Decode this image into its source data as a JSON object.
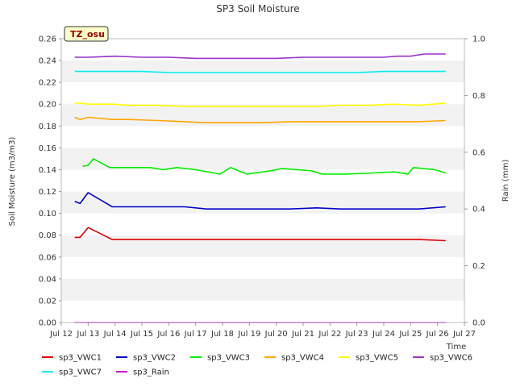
{
  "chart_data": {
    "type": "line",
    "title": "SP3 Soil Moisture",
    "badge": "TZ_osu",
    "xlabel": "Time",
    "ylabel": "Soil Moisture (m3/m3)",
    "y2label": "Rain (mm)",
    "ylim": [
      0,
      0.26
    ],
    "y2lim": [
      0,
      1.0
    ],
    "xlim": [
      12,
      27
    ],
    "y_ticks": [
      "0.00",
      "0.02",
      "0.04",
      "0.06",
      "0.08",
      "0.10",
      "0.12",
      "0.14",
      "0.16",
      "0.18",
      "0.20",
      "0.22",
      "0.24",
      "0.26"
    ],
    "y2_ticks": [
      "0.0",
      "0.2",
      "0.4",
      "0.6",
      "0.8",
      "1.0"
    ],
    "x_ticks": [
      "Jul 12",
      "Jul 13",
      "Jul 14",
      "Jul 15",
      "Jul 16",
      "Jul 17",
      "Jul 18",
      "Jul 19",
      "Jul 20",
      "Jul 21",
      "Jul 22",
      "Jul 23",
      "Jul 24",
      "Jul 25",
      "Jul 26",
      "Jul 27"
    ],
    "grid": "horizontal bands",
    "legend_position": "bottom",
    "series": [
      {
        "name": "sp3_VWC1",
        "color": "#dd0000",
        "x": [
          12.5,
          12.7,
          13.0,
          13.9,
          14.5,
          15.6,
          16.6,
          17.4,
          18.5,
          19.5,
          20.5,
          21.5,
          22.4,
          23.4,
          24.4,
          25.3,
          26.3
        ],
        "y": [
          0.078,
          0.078,
          0.087,
          0.076,
          0.076,
          0.076,
          0.076,
          0.076,
          0.076,
          0.076,
          0.076,
          0.076,
          0.076,
          0.076,
          0.076,
          0.076,
          0.075
        ]
      },
      {
        "name": "sp3_VWC2",
        "color": "#0000cc",
        "x": [
          12.5,
          12.7,
          13.0,
          13.9,
          14.5,
          15.6,
          16.6,
          17.4,
          18.5,
          19.5,
          20.5,
          21.5,
          22.4,
          23.4,
          24.4,
          25.3,
          26.3
        ],
        "y": [
          0.111,
          0.109,
          0.119,
          0.106,
          0.106,
          0.106,
          0.106,
          0.104,
          0.104,
          0.104,
          0.104,
          0.105,
          0.104,
          0.104,
          0.104,
          0.104,
          0.106
        ]
      },
      {
        "name": "sp3_VWC3",
        "color": "#00ee00",
        "x": [
          12.8,
          13.0,
          13.2,
          13.8,
          14.5,
          15.3,
          15.8,
          16.3,
          17.0,
          17.9,
          18.3,
          18.9,
          19.8,
          20.2,
          21.3,
          21.7,
          22.6,
          23.6,
          24.4,
          24.9,
          25.1,
          25.9,
          26.3
        ],
        "y": [
          0.143,
          0.144,
          0.15,
          0.142,
          0.142,
          0.142,
          0.14,
          0.142,
          0.14,
          0.136,
          0.142,
          0.136,
          0.139,
          0.141,
          0.139,
          0.136,
          0.136,
          0.137,
          0.138,
          0.136,
          0.142,
          0.14,
          0.137
        ]
      },
      {
        "name": "sp3_VWC4",
        "color": "#ffa500",
        "x": [
          12.5,
          12.7,
          13.0,
          13.9,
          14.5,
          15.6,
          16.6,
          17.4,
          18.5,
          19.5,
          20.5,
          21.5,
          22.4,
          23.4,
          24.4,
          25.3,
          26.3
        ],
        "y": [
          0.188,
          0.186,
          0.188,
          0.186,
          0.186,
          0.185,
          0.184,
          0.183,
          0.183,
          0.183,
          0.184,
          0.184,
          0.184,
          0.184,
          0.184,
          0.184,
          0.185
        ]
      },
      {
        "name": "sp3_VWC5",
        "color": "#ffff00",
        "x": [
          12.5,
          12.7,
          13.0,
          13.9,
          14.5,
          15.6,
          16.6,
          17.4,
          18.5,
          19.5,
          20.5,
          21.5,
          22.4,
          23.4,
          24.4,
          25.3,
          26.3
        ],
        "y": [
          0.201,
          0.201,
          0.2,
          0.2,
          0.199,
          0.199,
          0.198,
          0.198,
          0.198,
          0.198,
          0.198,
          0.198,
          0.199,
          0.199,
          0.2,
          0.199,
          0.201
        ]
      },
      {
        "name": "sp3_VWC6",
        "color": "#9933cc",
        "x": [
          12.5,
          13.0,
          14.0,
          15.0,
          16.0,
          17.0,
          18.0,
          19.0,
          20.0,
          21.0,
          22.0,
          23.0,
          24.0,
          24.5,
          25.0,
          25.5,
          26.3
        ],
        "y": [
          0.243,
          0.243,
          0.244,
          0.243,
          0.243,
          0.242,
          0.242,
          0.242,
          0.242,
          0.243,
          0.243,
          0.243,
          0.243,
          0.244,
          0.244,
          0.246,
          0.246
        ]
      },
      {
        "name": "sp3_VWC7",
        "color": "#00eeee",
        "x": [
          12.5,
          13.0,
          14.0,
          15.0,
          16.0,
          17.0,
          18.0,
          19.0,
          20.0,
          21.0,
          22.0,
          23.0,
          24.0,
          25.0,
          26.3
        ],
        "y": [
          0.23,
          0.23,
          0.23,
          0.23,
          0.229,
          0.229,
          0.229,
          0.229,
          0.229,
          0.229,
          0.229,
          0.229,
          0.23,
          0.23,
          0.23
        ]
      },
      {
        "name": "sp3_Rain",
        "color": "#cc00cc",
        "axis": "right",
        "x": [
          12.5,
          26.3
        ],
        "y": [
          0.0,
          0.0
        ]
      }
    ]
  }
}
